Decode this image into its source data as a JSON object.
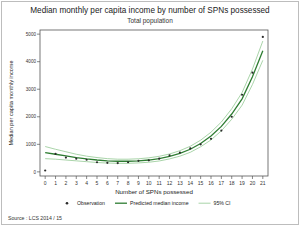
{
  "chart_data": {
    "type": "line",
    "title": "Median monthly per capita income by number of SPNs possessed",
    "subtitle": "Total population",
    "x_label": "Number of SPNs possessed",
    "y_label": "Median per capita monthly income",
    "source": "Source : LCS 2014 / 15",
    "x": [
      0,
      1,
      2,
      3,
      4,
      5,
      6,
      7,
      8,
      9,
      10,
      11,
      12,
      13,
      14,
      15,
      16,
      17,
      18,
      19,
      20,
      21
    ],
    "xlim": [
      -0.5,
      21.5
    ],
    "xticks": [
      0,
      1,
      2,
      3,
      4,
      5,
      6,
      7,
      8,
      9,
      10,
      11,
      12,
      13,
      14,
      15,
      16,
      17,
      18,
      19,
      20,
      21
    ],
    "ylim": [
      -150,
      5150
    ],
    "yticks": [
      0,
      1000,
      2000,
      3000,
      4000,
      5000
    ],
    "legend": "bottom",
    "series": [
      {
        "name": "Observation",
        "type": "scatter",
        "marker": "circle",
        "color": "#2b2b2b",
        "values": [
          50,
          650,
          520,
          480,
          440,
          350,
          330,
          320,
          350,
          400,
          420,
          480,
          600,
          700,
          850,
          1000,
          1200,
          1500,
          2000,
          2800,
          3600,
          4900
        ]
      },
      {
        "name": "Predicted median income",
        "type": "line",
        "line_style": "solid",
        "color": "#2e7d32",
        "values": [
          700,
          640,
          580,
          520,
          470,
          430,
          400,
          385,
          385,
          400,
          430,
          480,
          560,
          670,
          820,
          1030,
          1300,
          1650,
          2100,
          2650,
          3450,
          4400
        ]
      },
      {
        "name": "95% CI",
        "type": "band",
        "line_style": "solid",
        "color": "#9fcf9f",
        "lower": [
          480,
          460,
          430,
          400,
          370,
          340,
          320,
          310,
          310,
          325,
          350,
          395,
          470,
          570,
          710,
          910,
          1160,
          1490,
          1910,
          2420,
          3170,
          4050
        ],
        "upper": [
          920,
          820,
          730,
          640,
          570,
          520,
          480,
          460,
          460,
          475,
          510,
          565,
          650,
          770,
          930,
          1150,
          1440,
          1810,
          2290,
          2880,
          3730,
          4750
        ]
      }
    ]
  }
}
